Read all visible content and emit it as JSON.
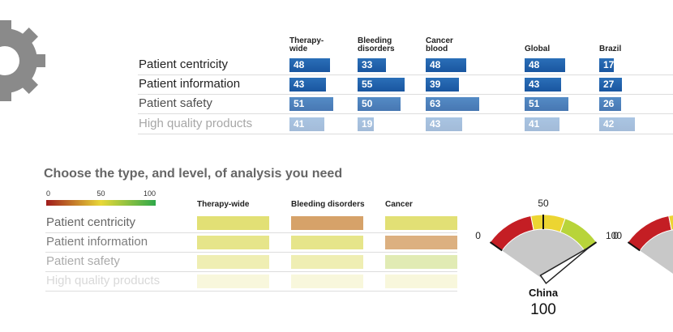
{
  "top_table": {
    "columns": [
      "Therapy-wide",
      "Bleeding disorders",
      "Cancer blood",
      "Global",
      "Brazil"
    ],
    "rows": [
      {
        "label": "Patient centricity",
        "values": [
          48,
          33,
          48,
          48,
          17
        ]
      },
      {
        "label": "Patient information",
        "values": [
          43,
          55,
          39,
          43,
          27
        ]
      },
      {
        "label": "Patient safety",
        "values": [
          51,
          50,
          63,
          51,
          26
        ]
      },
      {
        "label": "High quality products",
        "values": [
          41,
          19,
          43,
          41,
          42
        ]
      }
    ]
  },
  "heatmap": {
    "title": "Choose the type, and level, of analysis you need",
    "scale_ticks": [
      0,
      50,
      100
    ],
    "columns": [
      "Therapy-wide",
      "Bleeding disorders",
      "Cancer"
    ],
    "rows": [
      {
        "label": "Patient centricity",
        "values": [
          55,
          25,
          55
        ]
      },
      {
        "label": "Patient information",
        "values": [
          55,
          55,
          25
        ]
      },
      {
        "label": "Patient safety",
        "values": [
          55,
          55,
          65
        ]
      },
      {
        "label": "High quality products",
        "values": [
          55,
          55,
          55
        ]
      }
    ]
  },
  "gauges": [
    {
      "range": [
        0,
        100
      ],
      "ticks": [
        0,
        50,
        100
      ],
      "name": "China",
      "value": 100
    },
    {
      "range": [
        0,
        100
      ],
      "ticks": [
        0
      ]
    }
  ]
}
